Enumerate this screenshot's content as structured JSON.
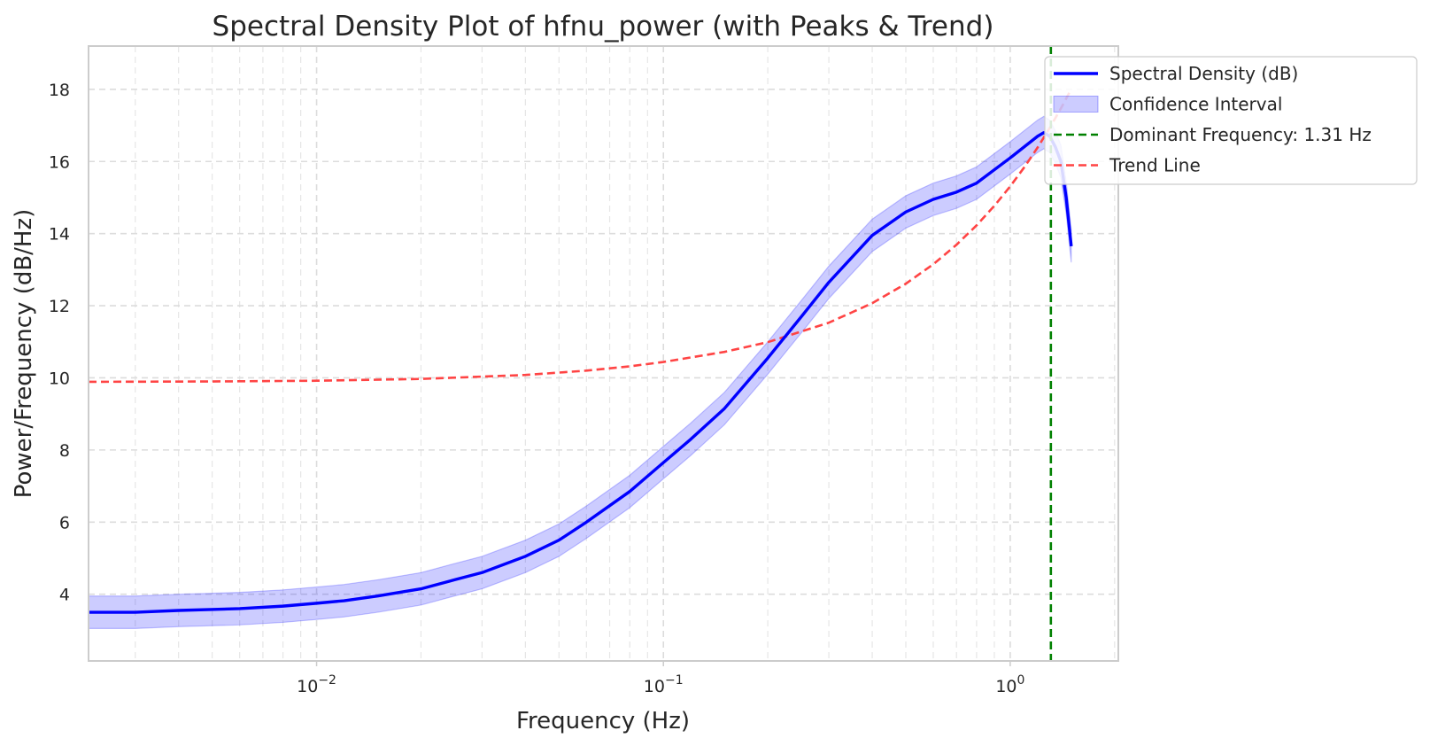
{
  "chart_data": {
    "type": "line",
    "title": "Spectral Density Plot of hfnu_power (with Peaks & Trend)",
    "xlabel": "Frequency (Hz)",
    "ylabel": "Power/Frequency (dB/Hz)",
    "x_scale": "log",
    "xlim": [
      0.0022,
      2.05
    ],
    "ylim": [
      2.15,
      19.2
    ],
    "x_ticks": [
      {
        "value": 0.01,
        "base": "10",
        "exp": "−2"
      },
      {
        "value": 0.1,
        "base": "10",
        "exp": "−1"
      },
      {
        "value": 1,
        "base": "10",
        "exp": "0"
      }
    ],
    "y_ticks": [
      4,
      6,
      8,
      10,
      12,
      14,
      16,
      18
    ],
    "grid": true,
    "legend_position": "top-right, partly outside plot",
    "legend": [
      {
        "label": "Spectral Density (dB)",
        "kind": "line",
        "color": "#0000ff"
      },
      {
        "label": "Confidence Interval",
        "kind": "band",
        "color": "#0000ff"
      },
      {
        "label": "Dominant Frequency: 1.31 Hz",
        "kind": "dashed",
        "color": "#008000"
      },
      {
        "label": "Trend Line",
        "kind": "dashed",
        "color": "#ff4444"
      }
    ],
    "series": [
      {
        "name": "Spectral Density (dB)",
        "style": "solid",
        "color": "#0000ff",
        "x": [
          0.0022,
          0.003,
          0.004,
          0.006,
          0.008,
          0.01,
          0.012,
          0.015,
          0.02,
          0.025,
          0.03,
          0.04,
          0.05,
          0.06,
          0.08,
          0.1,
          0.12,
          0.15,
          0.2,
          0.25,
          0.3,
          0.4,
          0.5,
          0.6,
          0.7,
          0.8,
          1.0,
          1.2,
          1.25,
          1.3,
          1.35,
          1.4,
          1.45,
          1.5
        ],
        "y": [
          3.5,
          3.5,
          3.55,
          3.6,
          3.67,
          3.75,
          3.82,
          3.95,
          4.15,
          4.4,
          4.6,
          5.05,
          5.5,
          6.0,
          6.85,
          7.65,
          8.3,
          9.15,
          10.55,
          11.7,
          12.65,
          13.95,
          14.6,
          14.95,
          15.15,
          15.4,
          16.1,
          16.7,
          16.8,
          16.7,
          16.4,
          16.0,
          15.0,
          13.65
        ]
      },
      {
        "name": "Confidence Interval",
        "style": "band",
        "color": "#0000ff",
        "x": [
          0.0022,
          0.003,
          0.004,
          0.006,
          0.008,
          0.01,
          0.012,
          0.015,
          0.02,
          0.025,
          0.03,
          0.04,
          0.05,
          0.06,
          0.08,
          0.1,
          0.12,
          0.15,
          0.2,
          0.25,
          0.3,
          0.4,
          0.5,
          0.6,
          0.7,
          0.8,
          1.0,
          1.2,
          1.25,
          1.3,
          1.35,
          1.4,
          1.45,
          1.5
        ],
        "lower": [
          3.05,
          3.05,
          3.1,
          3.15,
          3.22,
          3.3,
          3.37,
          3.5,
          3.7,
          3.95,
          4.15,
          4.6,
          5.05,
          5.55,
          6.4,
          7.2,
          7.85,
          8.7,
          10.1,
          11.25,
          12.2,
          13.5,
          14.15,
          14.5,
          14.7,
          14.95,
          15.65,
          16.25,
          16.35,
          16.25,
          15.95,
          15.55,
          14.55,
          13.2
        ],
        "upper": [
          3.95,
          3.95,
          4.0,
          4.05,
          4.12,
          4.2,
          4.27,
          4.4,
          4.6,
          4.85,
          5.05,
          5.5,
          5.95,
          6.45,
          7.3,
          8.1,
          8.75,
          9.6,
          11.0,
          12.15,
          13.1,
          14.4,
          15.05,
          15.4,
          15.6,
          15.85,
          16.55,
          17.15,
          17.25,
          17.15,
          16.85,
          16.45,
          15.45,
          14.1
        ]
      },
      {
        "name": "Trend Line",
        "style": "dashed",
        "color": "#ff4444",
        "x": [
          0.0022,
          0.005,
          0.01,
          0.02,
          0.04,
          0.06,
          0.08,
          0.1,
          0.15,
          0.2,
          0.3,
          0.4,
          0.5,
          0.6,
          0.7,
          0.8,
          0.9,
          1.0,
          1.1,
          1.2,
          1.3,
          1.4,
          1.5
        ],
        "y": [
          9.89,
          9.9,
          9.92,
          9.97,
          10.08,
          10.2,
          10.32,
          10.44,
          10.72,
          10.99,
          11.53,
          12.07,
          12.61,
          13.15,
          13.69,
          14.23,
          14.77,
          15.31,
          15.85,
          16.39,
          16.93,
          17.47,
          18.01
        ]
      }
    ],
    "vlines": [
      {
        "name": "Dominant Frequency: 1.31 Hz",
        "x": 1.31,
        "style": "dashed",
        "color": "#008000"
      }
    ]
  }
}
